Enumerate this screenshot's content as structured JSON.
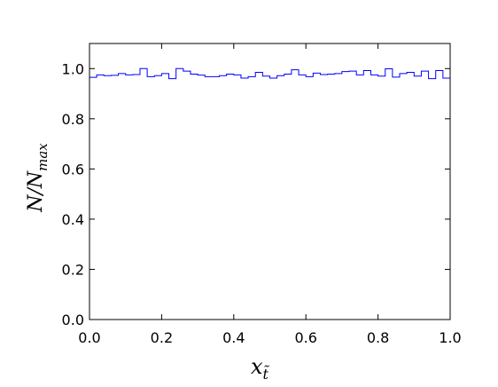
{
  "chart_data": {
    "type": "step",
    "title": "",
    "xlabel": "x",
    "xlabel_sub": "t̃",
    "ylabel": "N/N",
    "ylabel_sub": "max",
    "xlim": [
      0.0,
      1.0
    ],
    "ylim": [
      0.0,
      1.1
    ],
    "xticks": [
      "0.0",
      "0.2",
      "0.4",
      "0.6",
      "0.8",
      "1.0"
    ],
    "xtick_values": [
      0.0,
      0.2,
      0.4,
      0.6,
      0.8,
      1.0
    ],
    "yticks": [
      "0.0",
      "0.2",
      "0.4",
      "0.6",
      "0.8",
      "1.0"
    ],
    "ytick_values": [
      0.0,
      0.2,
      0.4,
      0.6,
      0.8,
      1.0
    ],
    "grid": false,
    "legend": false,
    "series": [
      {
        "color": "#0000ff",
        "bins": 50,
        "values": [
          0.965,
          0.975,
          0.972,
          0.973,
          0.98,
          0.975,
          0.976,
          1.0,
          0.968,
          0.972,
          0.98,
          0.96,
          1.0,
          0.99,
          0.978,
          0.974,
          0.968,
          0.968,
          0.972,
          0.978,
          0.975,
          0.962,
          0.968,
          0.985,
          0.97,
          0.962,
          0.972,
          0.978,
          0.995,
          0.975,
          0.968,
          0.982,
          0.976,
          0.978,
          0.98,
          0.988,
          0.99,
          0.975,
          0.992,
          0.975,
          0.97,
          0.999,
          0.966,
          0.98,
          0.985,
          0.97,
          0.99,
          0.96,
          0.992,
          0.962
        ]
      }
    ]
  }
}
